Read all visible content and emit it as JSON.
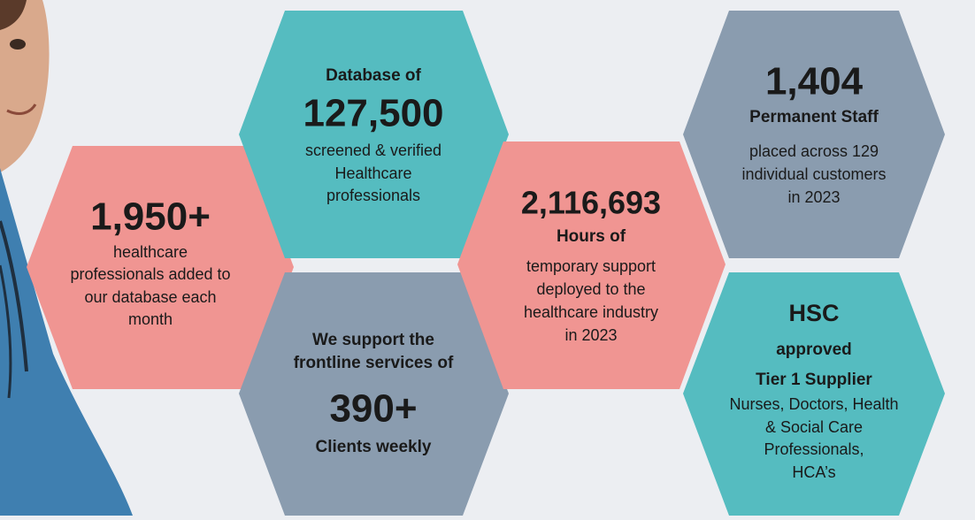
{
  "hexagons": [
    {
      "lines": [
        "1,950+",
        "healthcare",
        "professionals added to",
        "our database each",
        "month"
      ]
    },
    {
      "lines": [
        "Database of",
        "127,500",
        "screened & verified",
        "Healthcare",
        "professionals"
      ]
    },
    {
      "lines": [
        "We support the",
        "frontline services of",
        "390+",
        "Clients weekly"
      ]
    },
    {
      "lines": [
        "2,116,693",
        "Hours of",
        "temporary support",
        "deployed to the",
        "healthcare industry",
        "in 2023"
      ]
    },
    {
      "lines": [
        "1,404",
        "Permanent Staff",
        "placed across 129",
        "individual customers",
        "in 2023"
      ]
    },
    {
      "lines": [
        "HSC",
        "approved",
        "Tier 1 Supplier",
        "Nurses, Doctors, Health",
        "& Social Care",
        "Professionals,",
        "HCA’s"
      ]
    }
  ]
}
